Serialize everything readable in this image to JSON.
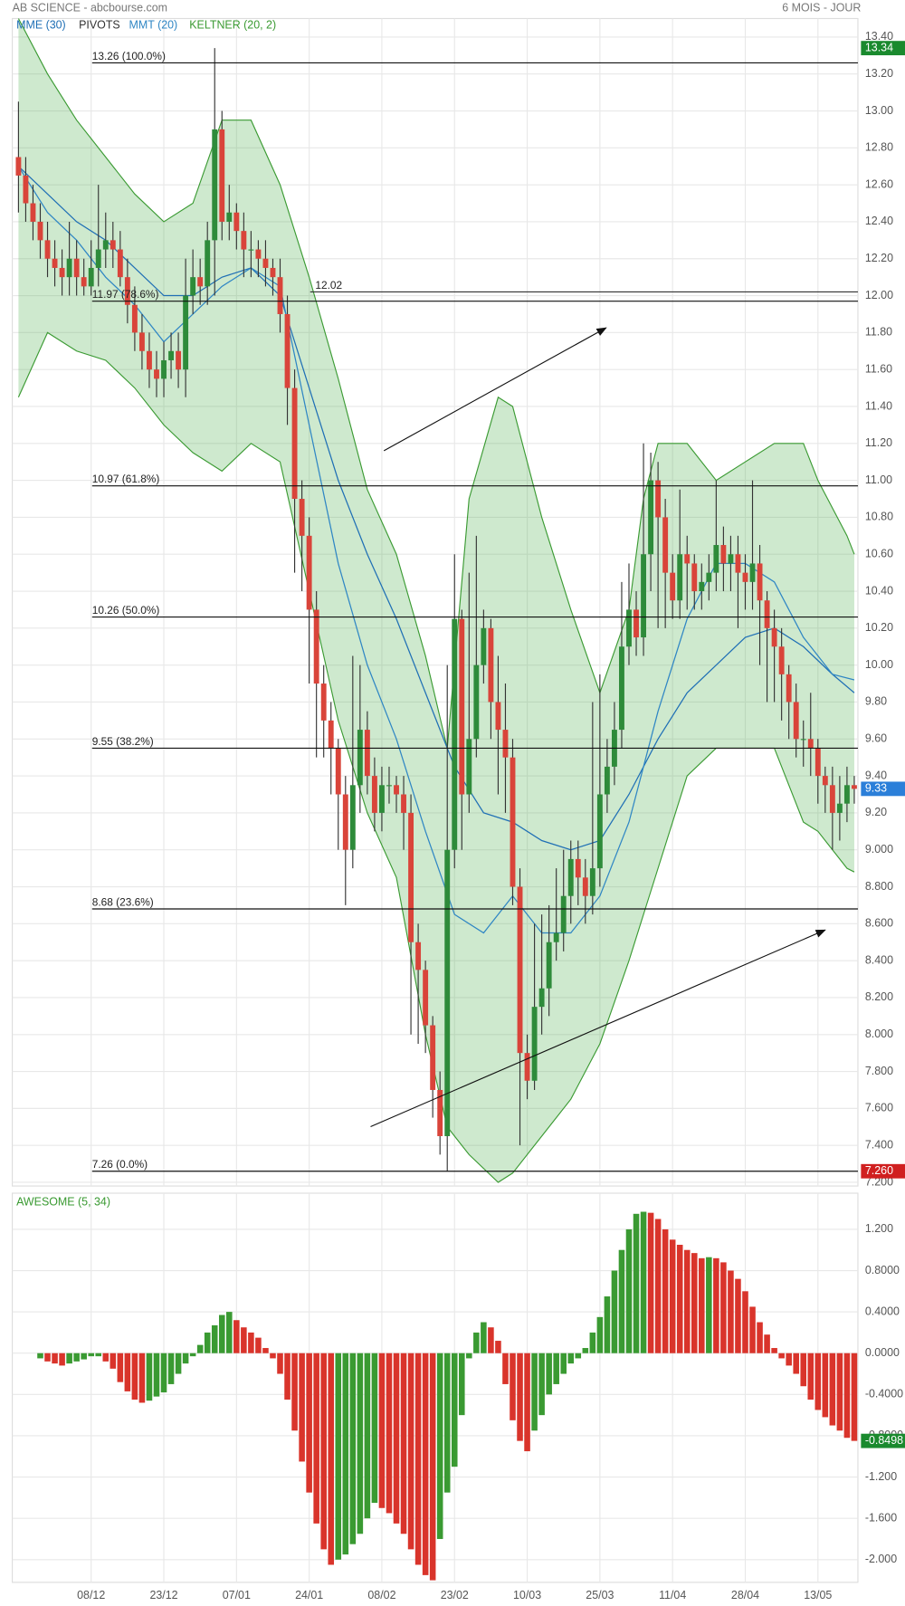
{
  "chart_data": [
    {
      "type": "candlestick",
      "title": "AB SCIENCE - abcbourse.com",
      "subtitle": "6 MOIS - JOUR",
      "up_color": "#2e8b3a",
      "down_color": "#d9443a",
      "open": [
        12.75,
        12.65,
        12.5,
        12.4,
        12.3,
        12.2,
        12.15,
        12.1,
        12.2,
        12.1,
        12.05,
        12.15,
        12.25,
        12.3,
        12.25,
        12.1,
        11.95,
        11.8,
        11.7,
        11.6,
        11.55,
        11.65,
        11.7,
        11.6,
        12.0,
        12.1,
        12.05,
        12.3,
        12.9,
        12.4,
        12.45,
        12.35,
        12.25,
        12.25,
        12.2,
        12.15,
        12.1,
        11.9,
        11.5,
        10.9,
        10.7,
        10.3,
        9.9,
        9.7,
        9.55,
        9.3,
        9.0,
        9.35,
        9.65,
        9.4,
        9.2,
        9.35,
        9.35,
        9.3,
        9.2,
        8.5,
        8.35,
        8.05,
        7.7,
        7.45,
        9.0,
        10.25,
        9.3,
        9.6,
        10.0,
        10.2,
        9.8,
        9.65,
        9.5,
        8.8,
        7.9,
        7.75,
        8.15,
        8.25,
        8.5,
        8.55,
        8.75,
        8.95,
        8.85,
        8.75,
        8.9,
        9.3,
        9.45,
        9.65,
        10.1,
        10.3,
        10.15,
        10.6,
        11.0,
        10.8,
        10.5,
        10.35,
        10.6,
        10.55,
        10.4,
        10.45,
        10.5,
        10.65,
        10.55,
        10.6,
        10.5,
        10.45,
        10.55,
        10.35,
        10.2,
        10.1,
        9.95,
        9.8,
        9.6,
        9.6,
        9.55,
        9.4,
        9.35,
        9.2,
        9.25,
        9.35
      ],
      "high": [
        13.05,
        12.75,
        12.6,
        12.5,
        12.4,
        12.3,
        12.25,
        12.4,
        12.3,
        12.2,
        12.3,
        12.6,
        12.45,
        12.4,
        12.35,
        12.2,
        12.05,
        11.9,
        11.8,
        11.7,
        11.75,
        11.8,
        11.8,
        12.2,
        12.25,
        12.2,
        12.4,
        13.34,
        13.0,
        12.6,
        12.5,
        12.45,
        12.35,
        12.3,
        12.3,
        12.2,
        12.2,
        12.0,
        11.6,
        11.0,
        10.8,
        10.4,
        10.0,
        9.8,
        9.6,
        9.4,
        10.05,
        10.0,
        9.75,
        9.5,
        9.45,
        9.45,
        9.4,
        9.4,
        9.3,
        8.6,
        8.4,
        8.1,
        7.8,
        10.0,
        10.6,
        10.3,
        10.5,
        10.7,
        10.3,
        10.25,
        10.05,
        9.9,
        9.6,
        8.9,
        8.0,
        8.6,
        8.65,
        8.7,
        8.9,
        9.0,
        9.05,
        9.05,
        8.95,
        9.8,
        9.95,
        9.6,
        9.8,
        10.45,
        10.55,
        10.4,
        11.2,
        11.15,
        11.1,
        10.9,
        10.6,
        10.95,
        10.7,
        10.6,
        10.55,
        10.6,
        11.0,
        10.75,
        10.7,
        10.7,
        10.6,
        11.0,
        10.65,
        10.4,
        10.3,
        10.2,
        10.0,
        9.9,
        9.7,
        9.85,
        9.6,
        9.45,
        9.45,
        9.4,
        9.45,
        9.4
      ],
      "low": [
        12.45,
        12.4,
        12.3,
        12.2,
        12.1,
        12.05,
        12.0,
        12.0,
        12.0,
        12.0,
        12.0,
        12.05,
        12.15,
        12.15,
        12.05,
        11.85,
        11.7,
        11.6,
        11.5,
        11.45,
        11.45,
        11.55,
        11.5,
        11.45,
        11.9,
        11.95,
        11.95,
        12.0,
        12.3,
        12.3,
        12.25,
        12.1,
        12.1,
        12.1,
        12.05,
        12.0,
        11.8,
        11.3,
        10.5,
        10.4,
        9.9,
        9.5,
        9.5,
        9.3,
        9.0,
        8.7,
        8.9,
        9.2,
        9.3,
        9.1,
        9.1,
        9.25,
        9.2,
        9.0,
        8.0,
        7.95,
        7.9,
        7.55,
        7.35,
        7.26,
        8.9,
        9.0,
        9.2,
        9.5,
        9.9,
        9.6,
        9.3,
        9.2,
        8.7,
        7.4,
        7.65,
        7.7,
        8.0,
        8.1,
        8.4,
        8.45,
        8.6,
        8.7,
        8.6,
        8.65,
        8.8,
        9.2,
        9.35,
        9.55,
        10.0,
        10.05,
        10.05,
        10.4,
        10.2,
        10.2,
        10.25,
        10.25,
        10.3,
        10.3,
        10.3,
        10.35,
        10.4,
        10.4,
        10.4,
        10.2,
        10.3,
        10.3,
        10.0,
        9.8,
        9.8,
        9.7,
        9.6,
        9.5,
        9.45,
        9.4,
        9.25,
        9.2,
        9.0,
        9.05,
        9.15,
        9.25
      ],
      "close": [
        12.65,
        12.5,
        12.4,
        12.3,
        12.2,
        12.15,
        12.1,
        12.2,
        12.1,
        12.05,
        12.15,
        12.25,
        12.3,
        12.25,
        12.1,
        11.95,
        11.8,
        11.7,
        11.6,
        11.55,
        11.65,
        11.7,
        11.6,
        12.0,
        12.1,
        12.05,
        12.3,
        12.9,
        12.4,
        12.45,
        12.35,
        12.25,
        12.25,
        12.2,
        12.15,
        12.1,
        11.9,
        11.5,
        10.9,
        10.7,
        10.3,
        9.9,
        9.7,
        9.55,
        9.3,
        9.0,
        9.35,
        9.65,
        9.4,
        9.2,
        9.35,
        9.35,
        9.3,
        9.2,
        8.5,
        8.35,
        8.05,
        7.7,
        7.45,
        9.0,
        10.25,
        9.3,
        9.6,
        10.0,
        10.2,
        9.8,
        9.65,
        9.5,
        8.8,
        7.9,
        7.75,
        8.15,
        8.25,
        8.5,
        8.55,
        8.75,
        8.95,
        8.85,
        8.75,
        8.9,
        9.3,
        9.45,
        9.65,
        10.1,
        10.3,
        10.15,
        10.6,
        11.0,
        10.8,
        10.5,
        10.35,
        10.6,
        10.55,
        10.4,
        10.45,
        10.5,
        10.65,
        10.55,
        10.6,
        10.5,
        10.45,
        10.55,
        10.35,
        10.2,
        10.1,
        9.95,
        9.8,
        9.6,
        9.6,
        9.55,
        9.4,
        9.35,
        9.2,
        9.25,
        9.35,
        9.33
      ],
      "last_close_color": "#2b7fd9",
      "high_badge": 13.34,
      "high_badge_color": "#1a8a2e",
      "low_badge": {
        "value": 7.26,
        "label": "7.260"
      },
      "low_badge_color": "#d02020",
      "series": [
        {
          "name": "MME (30)",
          "color": "#1f6fb5",
          "x": [
            0,
            4,
            8,
            12,
            16,
            20,
            24,
            28,
            32,
            36,
            40,
            44,
            48,
            52,
            56,
            60,
            64,
            68,
            72,
            76,
            80,
            84,
            88,
            92,
            96,
            100,
            104,
            108,
            112,
            115
          ],
          "values": [
            12.7,
            12.55,
            12.4,
            12.3,
            12.15,
            12.0,
            12.0,
            12.1,
            12.15,
            12.0,
            11.5,
            11.0,
            10.6,
            10.25,
            9.85,
            9.45,
            9.2,
            9.15,
            9.05,
            9.0,
            9.05,
            9.3,
            9.6,
            9.85,
            10.0,
            10.15,
            10.2,
            10.1,
            9.95,
            9.85
          ]
        },
        {
          "name": "MMT (20)",
          "color": "#2f86c4",
          "x": [
            0,
            4,
            8,
            12,
            16,
            20,
            24,
            28,
            32,
            36,
            40,
            44,
            48,
            52,
            56,
            60,
            64,
            68,
            72,
            76,
            80,
            84,
            88,
            92,
            96,
            100,
            104,
            108,
            112,
            115
          ],
          "values": [
            12.7,
            12.45,
            12.3,
            12.1,
            11.95,
            11.75,
            11.9,
            12.05,
            12.15,
            12.05,
            11.3,
            10.55,
            10.0,
            9.6,
            9.1,
            8.65,
            8.55,
            8.75,
            8.55,
            8.55,
            8.75,
            9.15,
            9.75,
            10.25,
            10.55,
            10.55,
            10.45,
            10.15,
            9.95,
            9.92
          ]
        }
      ],
      "keltner": {
        "name": "KELTNER (20, 2)",
        "color": "#3a9a32",
        "fill": "#3aa83a",
        "x": [
          0,
          4,
          8,
          12,
          16,
          20,
          24,
          28,
          32,
          36,
          40,
          44,
          48,
          52,
          56,
          59,
          62,
          66,
          68,
          72,
          76,
          80,
          84,
          86,
          88,
          92,
          96,
          100,
          104,
          108,
          110,
          114,
          115
        ],
        "upper": [
          13.5,
          13.2,
          12.95,
          12.75,
          12.55,
          12.4,
          12.5,
          12.95,
          12.95,
          12.6,
          12.1,
          11.55,
          10.95,
          10.6,
          10.05,
          9.55,
          10.9,
          11.45,
          11.4,
          10.8,
          10.3,
          9.85,
          10.3,
          10.9,
          11.2,
          11.2,
          11.0,
          11.1,
          11.2,
          11.2,
          11.0,
          10.7,
          10.6
        ],
        "lower": [
          11.45,
          11.8,
          11.7,
          11.65,
          11.5,
          11.3,
          11.15,
          11.05,
          11.2,
          11.1,
          10.4,
          9.7,
          9.2,
          8.85,
          8.0,
          7.5,
          7.35,
          7.2,
          7.25,
          7.45,
          7.65,
          7.95,
          8.4,
          8.65,
          8.9,
          9.4,
          9.55,
          9.55,
          9.55,
          9.15,
          9.1,
          8.9,
          8.88
        ]
      },
      "pivots": {
        "name": "PIVOTS",
        "color": "#333333",
        "levels": [
          12.02
        ]
      },
      "fibonacci": [
        {
          "value": 13.26,
          "label": "13.26  (100.0%)"
        },
        {
          "value": 11.97,
          "label": "11.97  (78.6%)"
        },
        {
          "value": 10.97,
          "label": "10.97  (61.8%)"
        },
        {
          "value": 10.26,
          "label": "10.26  (50.0%)"
        },
        {
          "value": 9.55,
          "label": "9.55  (38.2%)"
        },
        {
          "value": 8.68,
          "label": "8.68  (23.6%)"
        },
        {
          "value": 7.26,
          "label": "7.26  (0.0%)"
        }
      ],
      "xlim": [
        -0.85,
        115.5
      ],
      "ylim": [
        7.18,
        13.5
      ],
      "yticks": [
        {
          "value": 13.4,
          "label": "13.40"
        },
        {
          "value": 13.2,
          "label": "13.20"
        },
        {
          "value": 13.0,
          "label": "13.00"
        },
        {
          "value": 12.8,
          "label": "12.80"
        },
        {
          "value": 12.6,
          "label": "12.60"
        },
        {
          "value": 12.4,
          "label": "12.40"
        },
        {
          "value": 12.2,
          "label": "12.20"
        },
        {
          "value": 12.0,
          "label": "12.00"
        },
        {
          "value": 11.8,
          "label": "11.80"
        },
        {
          "value": 11.6,
          "label": "11.60"
        },
        {
          "value": 11.4,
          "label": "11.40"
        },
        {
          "value": 11.2,
          "label": "11.20"
        },
        {
          "value": 11.0,
          "label": "11.00"
        },
        {
          "value": 10.8,
          "label": "10.80"
        },
        {
          "value": 10.6,
          "label": "10.60"
        },
        {
          "value": 10.4,
          "label": "10.40"
        },
        {
          "value": 10.2,
          "label": "10.20"
        },
        {
          "value": 10.0,
          "label": "10.00"
        },
        {
          "value": 9.8,
          "label": "9.80"
        },
        {
          "value": 9.6,
          "label": "9.60"
        },
        {
          "value": 9.4,
          "label": "9.40"
        },
        {
          "value": 9.2,
          "label": "9.20"
        },
        {
          "value": 9.0,
          "label": "9.000"
        },
        {
          "value": 8.8,
          "label": "8.800"
        },
        {
          "value": 8.6,
          "label": "8.600"
        },
        {
          "value": 8.4,
          "label": "8.400"
        },
        {
          "value": 8.2,
          "label": "8.200"
        },
        {
          "value": 8.0,
          "label": "8.000"
        },
        {
          "value": 7.8,
          "label": "7.800"
        },
        {
          "value": 7.6,
          "label": "7.600"
        },
        {
          "value": 7.4,
          "label": "7.400"
        },
        {
          "value": 7.2,
          "label": "7.200"
        }
      ],
      "grid": true
    },
    {
      "type": "bar",
      "title": "AWESOME (5, 34)",
      "title_color": "#3a9a32",
      "up_color": "#3a9a32",
      "down_color": "#d9342b",
      "values": [
        null,
        null,
        null,
        -0.05,
        -0.08,
        -0.1,
        -0.12,
        -0.1,
        -0.08,
        -0.06,
        -0.03,
        -0.03,
        -0.08,
        -0.15,
        -0.28,
        -0.37,
        -0.45,
        -0.48,
        -0.46,
        -0.42,
        -0.38,
        -0.3,
        -0.2,
        -0.1,
        -0.03,
        0.08,
        0.2,
        0.27,
        0.37,
        0.4,
        0.32,
        0.25,
        0.2,
        0.15,
        0.05,
        -0.05,
        -0.2,
        -0.45,
        -0.75,
        -1.05,
        -1.35,
        -1.65,
        -1.9,
        -2.05,
        -2.0,
        -1.95,
        -1.85,
        -1.75,
        -1.6,
        -1.45,
        -1.5,
        -1.55,
        -1.65,
        -1.75,
        -1.9,
        -2.05,
        -2.15,
        -2.2,
        -1.8,
        -1.35,
        -1.1,
        -0.6,
        -0.05,
        0.2,
        0.3,
        0.25,
        0.12,
        -0.3,
        -0.65,
        -0.85,
        -0.95,
        -0.75,
        -0.6,
        -0.4,
        -0.3,
        -0.2,
        -0.1,
        -0.05,
        0.05,
        0.2,
        0.35,
        0.55,
        0.8,
        1.0,
        1.2,
        1.35,
        1.37,
        1.36,
        1.3,
        1.2,
        1.1,
        1.05,
        1.0,
        0.97,
        0.92,
        0.93,
        0.92,
        0.88,
        0.8,
        0.72,
        0.6,
        0.45,
        0.3,
        0.18,
        0.05,
        -0.05,
        -0.12,
        -0.2,
        -0.32,
        -0.45,
        -0.55,
        -0.62,
        -0.7,
        -0.75,
        -0.82,
        -0.8498
      ],
      "last_value_color": "#1a8a2e",
      "xlim": [
        -0.85,
        115.5
      ],
      "ylim": [
        -2.22,
        1.55
      ],
      "yticks": [
        {
          "value": 1.2,
          "label": "1.200"
        },
        {
          "value": 0.8,
          "label": "0.8000"
        },
        {
          "value": 0.4,
          "label": "0.4000"
        },
        {
          "value": 0,
          "label": "0.0000"
        },
        {
          "value": -0.4,
          "label": "-0.4000"
        },
        {
          "value": -0.8,
          "label": "-0.8000"
        },
        {
          "value": -1.2,
          "label": "-1.200"
        },
        {
          "value": -1.6,
          "label": "-1.600"
        },
        {
          "value": -2.0,
          "label": "-2.000"
        }
      ],
      "xticks": [
        {
          "value": 10,
          "label": "08/12"
        },
        {
          "value": 20,
          "label": "23/12"
        },
        {
          "value": 30,
          "label": "07/01"
        },
        {
          "value": 40,
          "label": "24/01"
        },
        {
          "value": 50,
          "label": "08/02"
        },
        {
          "value": 60,
          "label": "23/02"
        },
        {
          "value": 70,
          "label": "10/03"
        },
        {
          "value": 80,
          "label": "25/03"
        },
        {
          "value": 90,
          "label": "11/04"
        },
        {
          "value": 100,
          "label": "28/04"
        },
        {
          "value": 110,
          "label": "13/05"
        }
      ],
      "grid": true
    }
  ]
}
